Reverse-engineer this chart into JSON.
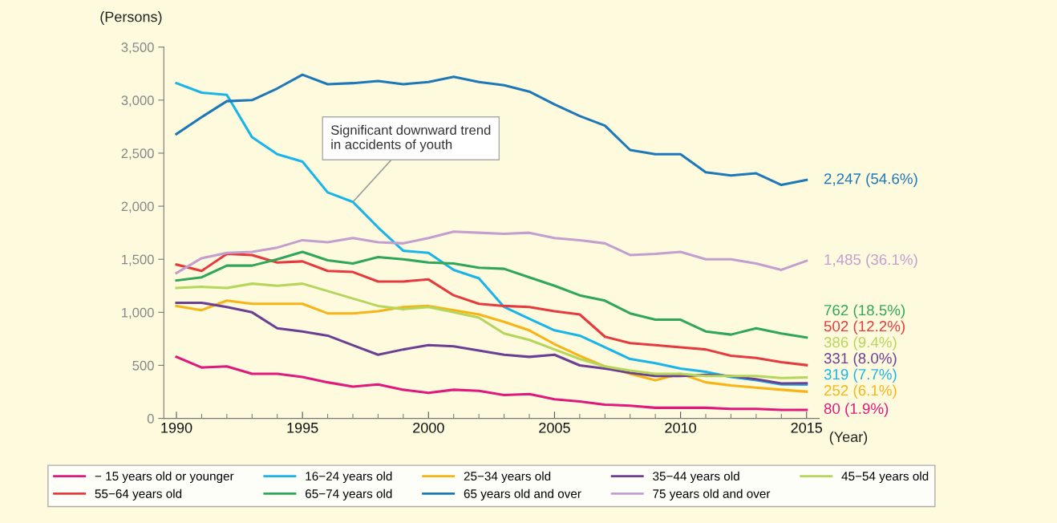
{
  "chart_data": {
    "type": "line",
    "x": [
      1990,
      1991,
      1992,
      1993,
      1994,
      1995,
      1996,
      1997,
      1998,
      1999,
      2000,
      2001,
      2002,
      2003,
      2004,
      2005,
      2006,
      2007,
      2008,
      2009,
      2010,
      2011,
      2012,
      2013,
      2014,
      2015
    ],
    "xlim": [
      1989.5,
      2015.5
    ],
    "xticks": [
      1990,
      1995,
      2000,
      2005,
      2010,
      2015
    ],
    "ylim": [
      0,
      3500
    ],
    "yticks": [
      0,
      500,
      {
        "value": 1000,
        "label": "1,000"
      },
      {
        "value": 1500,
        "label": "1,500"
      },
      {
        "value": 2000,
        "label": "2,000"
      },
      {
        "value": 2500,
        "label": "2,500"
      },
      {
        "value": 3000,
        "label": "3,000"
      },
      {
        "value": 3500,
        "label": "3,500"
      }
    ],
    "ylabel": "(Persons)",
    "xlabel": "(Year)",
    "grid": false,
    "legend": "bottom",
    "line_style": "solid",
    "marker": "none",
    "annotations": [
      {
        "text": "Significant downward trend\nin accidents of youth",
        "x": 1997,
        "y": 2040
      }
    ],
    "series": [
      {
        "name": "− 15 years old or younger",
        "color": "#e0197d",
        "values": [
          580,
          480,
          490,
          420,
          420,
          390,
          340,
          300,
          320,
          270,
          240,
          270,
          260,
          220,
          230,
          180,
          160,
          130,
          120,
          100,
          100,
          100,
          90,
          90,
          80,
          80
        ],
        "value_labels": [
          null,
          null,
          null,
          null,
          null,
          null,
          null,
          null,
          null,
          null,
          null,
          null,
          null,
          null,
          null,
          null,
          null,
          null,
          null,
          null,
          null,
          null,
          null,
          null,
          null,
          "80 (1.9%)"
        ]
      },
      {
        "name": "16−24 years old",
        "color": "#1ab5e8",
        "values": [
          3160,
          3070,
          3050,
          2650,
          2490,
          2420,
          2130,
          2040,
          1800,
          1580,
          1560,
          1400,
          1320,
          1050,
          940,
          830,
          780,
          670,
          560,
          520,
          470,
          440,
          390,
          360,
          320,
          319
        ],
        "value_labels": [
          null,
          null,
          null,
          null,
          null,
          null,
          null,
          null,
          null,
          null,
          null,
          null,
          null,
          null,
          null,
          null,
          null,
          null,
          null,
          null,
          null,
          null,
          null,
          null,
          null,
          "319 (7.7%)"
        ]
      },
      {
        "name": "25−34 years old",
        "color": "#f7b416",
        "values": [
          1060,
          1020,
          1110,
          1080,
          1080,
          1080,
          990,
          990,
          1010,
          1050,
          1060,
          1020,
          980,
          910,
          830,
          700,
          590,
          490,
          420,
          360,
          420,
          340,
          310,
          290,
          270,
          252
        ],
        "value_labels": [
          null,
          null,
          null,
          null,
          null,
          null,
          null,
          null,
          null,
          null,
          null,
          null,
          null,
          null,
          null,
          null,
          null,
          null,
          null,
          null,
          null,
          null,
          null,
          null,
          null,
          "252 (6.1%)"
        ]
      },
      {
        "name": "35−44 years old",
        "color": "#6b3f93",
        "values": [
          1090,
          1090,
          1050,
          1000,
          850,
          820,
          780,
          690,
          600,
          650,
          690,
          680,
          640,
          600,
          580,
          600,
          500,
          470,
          430,
          400,
          400,
          410,
          400,
          370,
          330,
          331
        ],
        "value_labels": [
          null,
          null,
          null,
          null,
          null,
          null,
          null,
          null,
          null,
          null,
          null,
          null,
          null,
          null,
          null,
          null,
          null,
          null,
          null,
          null,
          null,
          null,
          null,
          null,
          null,
          "331 (8.0%)"
        ]
      },
      {
        "name": "45−54 years old",
        "color": "#b5d65a",
        "values": [
          1230,
          1240,
          1230,
          1270,
          1250,
          1270,
          1200,
          1130,
          1060,
          1030,
          1050,
          1000,
          950,
          800,
          740,
          650,
          560,
          490,
          450,
          420,
          420,
          400,
          400,
          400,
          380,
          386
        ],
        "value_labels": [
          null,
          null,
          null,
          null,
          null,
          null,
          null,
          null,
          null,
          null,
          null,
          null,
          null,
          null,
          null,
          null,
          null,
          null,
          null,
          null,
          null,
          null,
          null,
          null,
          null,
          "386 (9.4%)"
        ]
      },
      {
        "name": "55−64 years old",
        "color": "#e63a3f",
        "values": [
          1450,
          1390,
          1550,
          1540,
          1470,
          1480,
          1390,
          1380,
          1290,
          1290,
          1310,
          1160,
          1080,
          1060,
          1050,
          1010,
          980,
          770,
          710,
          690,
          670,
          650,
          590,
          570,
          530,
          502
        ],
        "value_labels": [
          null,
          null,
          null,
          null,
          null,
          null,
          null,
          null,
          null,
          null,
          null,
          null,
          null,
          null,
          null,
          null,
          null,
          null,
          null,
          null,
          null,
          null,
          null,
          null,
          null,
          "502 (12.2%)"
        ]
      },
      {
        "name": "65−74 years old",
        "color": "#2fa658",
        "values": [
          1300,
          1330,
          1440,
          1440,
          1500,
          1570,
          1490,
          1460,
          1520,
          1500,
          1470,
          1460,
          1420,
          1410,
          1330,
          1250,
          1160,
          1110,
          990,
          930,
          930,
          820,
          790,
          850,
          800,
          762
        ],
        "value_labels": [
          null,
          null,
          null,
          null,
          null,
          null,
          null,
          null,
          null,
          null,
          null,
          null,
          null,
          null,
          null,
          null,
          null,
          null,
          null,
          null,
          null,
          null,
          null,
          null,
          null,
          "762 (18.5%)"
        ]
      },
      {
        "name": "65 years old and over",
        "color": "#1e78b8",
        "values": [
          2680,
          2840,
          2990,
          3000,
          3110,
          3240,
          3150,
          3160,
          3180,
          3150,
          3170,
          3220,
          3170,
          3140,
          3080,
          2960,
          2850,
          2760,
          2530,
          2490,
          2490,
          2320,
          2290,
          2310,
          2200,
          2247
        ],
        "value_labels": [
          null,
          null,
          null,
          null,
          null,
          null,
          null,
          null,
          null,
          null,
          null,
          null,
          null,
          null,
          null,
          null,
          null,
          null,
          null,
          null,
          null,
          null,
          null,
          null,
          null,
          "2,247 (54.6%)"
        ]
      },
      {
        "name": "75 years old and over",
        "color": "#c39fd0",
        "values": [
          1370,
          1510,
          1560,
          1570,
          1610,
          1680,
          1660,
          1700,
          1660,
          1650,
          1700,
          1760,
          1750,
          1740,
          1750,
          1700,
          1680,
          1650,
          1540,
          1550,
          1570,
          1500,
          1500,
          1460,
          1400,
          1485
        ],
        "value_labels": [
          null,
          null,
          null,
          null,
          null,
          null,
          null,
          null,
          null,
          null,
          null,
          null,
          null,
          null,
          null,
          null,
          null,
          null,
          null,
          null,
          null,
          null,
          null,
          null,
          null,
          "1,485 (36.1%)"
        ]
      }
    ]
  }
}
